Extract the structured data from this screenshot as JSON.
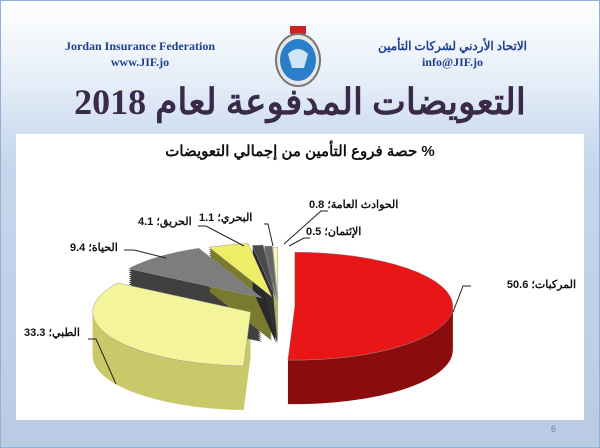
{
  "header": {
    "org_en": "Jordan Insurance Federation",
    "site": "www.JIF.jo",
    "org_ar": "الاتحاد الأردني لشركات التأمين",
    "email": "info@JIF.jo"
  },
  "slide_title": "التعويضات المدفوعة لعام 2018",
  "page_number": "6",
  "chart_data": {
    "type": "pie",
    "title": "% حصة فروع التأمين من إجمالي التعويضات",
    "style": "3d-exploded",
    "slices": [
      {
        "label": "المركبات",
        "value": 50.6,
        "color": "#e81616",
        "side": "#8a0c0c",
        "text": "المركبات؛ 50.6"
      },
      {
        "label": "الطبي",
        "value": 33.3,
        "color": "#f4f49a",
        "side": "#c9c96a",
        "text": "الطبي؛ 33.3"
      },
      {
        "label": "الحياة",
        "value": 9.4,
        "color": "#7d7d7d",
        "side": "#404040",
        "text": "الحياة؛ 9.4"
      },
      {
        "label": "الحريق",
        "value": 4.1,
        "color": "#eeee66",
        "side": "#7a7a30",
        "text": "الحريق؛ 4.1"
      },
      {
        "label": "البحري",
        "value": 1.1,
        "color": "#4a4a4a",
        "side": "#2a2a2a",
        "text": "البحري؛ 1.1"
      },
      {
        "label": "الحوادث العامة",
        "value": 0.8,
        "color": "#666666",
        "side": "#333333",
        "text": "الحوادث العامة؛ 0.8"
      },
      {
        "label": "الإئتمان",
        "value": 0.5,
        "color": "#f6f6b0",
        "side": "#b0b070",
        "text": "الإئتمان؛ 0.5"
      }
    ]
  }
}
